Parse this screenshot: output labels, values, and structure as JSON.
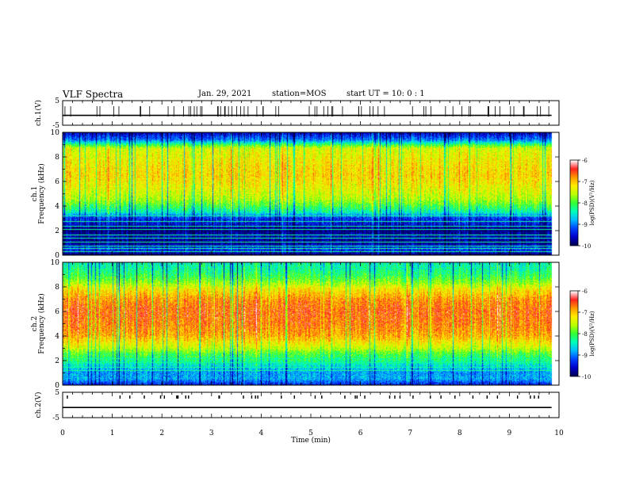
{
  "header": {
    "title": "VLF Spectra",
    "date": "Jan. 29, 2021",
    "station": "station=MOS",
    "start": "start  UT =   10: 0  : 1"
  },
  "chart_data": [
    {
      "type": "line",
      "name": "ch1-waveform",
      "ylabel": "ch.1(V)",
      "ylim": [
        -5,
        5
      ],
      "yticks": [
        5,
        -5
      ],
      "xlim": [
        0,
        10
      ],
      "series": [
        {
          "values": [
            [
              0,
              -1
            ],
            [
              9.85,
              -1
            ]
          ]
        }
      ]
    },
    {
      "type": "heatmap",
      "name": "ch1-spectrogram",
      "ylabel_lines": [
        "ch.1",
        "Frequency (kHz)"
      ],
      "ylim": [
        0,
        10
      ],
      "yticks": [
        0,
        2,
        4,
        6,
        8,
        10
      ],
      "xlim": [
        0,
        10
      ],
      "data_xmax": 9.85,
      "clim": [
        -10,
        -6
      ],
      "colorbar_ticks": [
        -6,
        -7,
        -8,
        -9,
        -10
      ],
      "colorbar_label": "log(PSD)(V²/Hz)",
      "profile": [
        [
          0.0,
          -9.9
        ],
        [
          0.5,
          -9.2
        ],
        [
          1.0,
          -9.8
        ],
        [
          1.5,
          -9.6
        ],
        [
          2.0,
          -9.9
        ],
        [
          2.5,
          -9.5
        ],
        [
          3.0,
          -9.3
        ],
        [
          3.5,
          -8.4
        ],
        [
          4.5,
          -7.6
        ],
        [
          5.5,
          -7.3
        ],
        [
          6.5,
          -7.1
        ],
        [
          7.5,
          -7.2
        ],
        [
          8.0,
          -7.3
        ],
        [
          8.7,
          -7.4
        ],
        [
          9.0,
          -8.0
        ],
        [
          9.4,
          -9.0
        ],
        [
          10.0,
          -9.6
        ]
      ],
      "lines_khz": [
        0.3,
        0.6,
        0.8,
        1.1,
        1.4,
        1.7,
        2.1,
        2.4,
        2.8,
        3.2
      ]
    },
    {
      "type": "heatmap",
      "name": "ch2-spectrogram",
      "ylabel_lines": [
        "ch.2",
        "Frequency (kHz)"
      ],
      "ylim": [
        0,
        10
      ],
      "yticks": [
        0,
        2,
        4,
        6,
        8,
        10
      ],
      "xlim": [
        0,
        10
      ],
      "data_xmax": 9.85,
      "clim": [
        -10,
        -6
      ],
      "colorbar_ticks": [
        -6,
        -7,
        -8,
        -9,
        -10
      ],
      "colorbar_label": "log(PSD)(V²/Hz)",
      "profile": [
        [
          0.0,
          -9.4
        ],
        [
          0.5,
          -8.8
        ],
        [
          1.0,
          -8.9
        ],
        [
          1.5,
          -8.6
        ],
        [
          2.0,
          -8.2
        ],
        [
          2.5,
          -8.0
        ],
        [
          3.0,
          -7.5
        ],
        [
          3.5,
          -7.2
        ],
        [
          4.0,
          -6.9
        ],
        [
          5.0,
          -6.7
        ],
        [
          6.0,
          -6.6
        ],
        [
          7.0,
          -6.8
        ],
        [
          7.8,
          -7.2
        ],
        [
          8.5,
          -7.8
        ],
        [
          9.0,
          -8.1
        ],
        [
          9.5,
          -8.3
        ],
        [
          10.0,
          -8.4
        ]
      ],
      "lines_khz": [
        1.2,
        1.5,
        1.9,
        2.2
      ]
    },
    {
      "type": "line",
      "name": "ch2-waveform",
      "ylabel": "ch.2(V)",
      "ylim": [
        -5,
        5
      ],
      "yticks": [
        5,
        -5
      ],
      "xlim": [
        0,
        10
      ],
      "series": [
        {
          "values": [
            [
              0,
              -1
            ],
            [
              9.85,
              -1
            ]
          ]
        }
      ]
    }
  ],
  "x_axis": {
    "label": "Time (min)",
    "ticks": [
      0,
      1,
      2,
      3,
      4,
      5,
      6,
      7,
      8,
      9,
      10
    ]
  },
  "colors": {
    "scale": [
      "#000055",
      "#0000cc",
      "#0044ff",
      "#00bbff",
      "#00ffbb",
      "#33ff33",
      "#bbff00",
      "#ffee00",
      "#ff9900",
      "#ff2222",
      "#ffffff"
    ]
  }
}
